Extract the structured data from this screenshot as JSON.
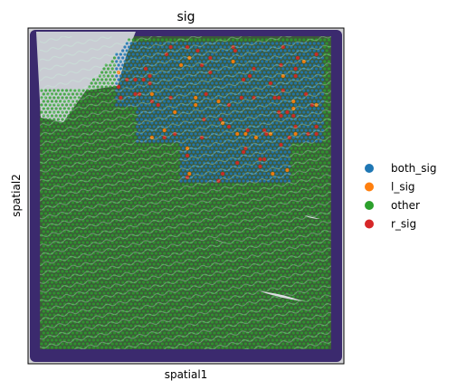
{
  "chart_data": {
    "type": "scatter",
    "title": "sig",
    "xlabel": "spatial1",
    "ylabel": "spatial2",
    "x_ticks_visible": false,
    "y_ticks_visible": false,
    "grid": false,
    "legend_placement": "right",
    "categories": [
      "both_sig",
      "l_sig",
      "other",
      "r_sig"
    ],
    "colors": {
      "both_sig": "#1f77b4",
      "l_sig": "#ff7f0e",
      "other": "#2ca02c",
      "r_sig": "#d62728"
    },
    "background": "H&E tissue image (purple-stained spatial transcriptomics section)"
  }
}
